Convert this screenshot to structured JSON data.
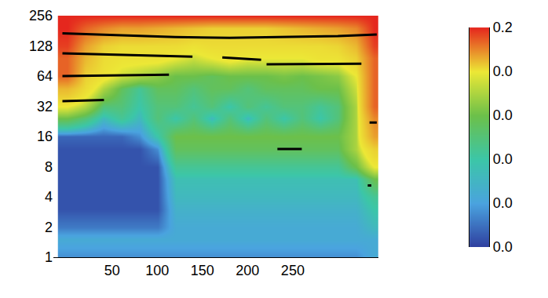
{
  "chart_data": {
    "type": "heatmap",
    "log": "y",
    "grid": false,
    "x": [
      0,
      20,
      40,
      60,
      80,
      100,
      120,
      140,
      160,
      180,
      200,
      220,
      240,
      260,
      280,
      300,
      320,
      340
    ],
    "y": [
      1,
      1.5,
      2,
      3,
      4,
      6,
      8,
      12,
      16,
      24,
      32,
      48,
      64,
      96,
      128,
      192,
      256
    ],
    "xlim": [
      -15,
      345
    ],
    "xticks": [
      50,
      100,
      150,
      200,
      250
    ],
    "ylim": [
      1,
      256
    ],
    "yticks": [
      1,
      2,
      4,
      8,
      16,
      32,
      64,
      128,
      256
    ],
    "z": [
      [
        0.004,
        0.004,
        0.004,
        0.004,
        0.004,
        0.004,
        0.004,
        0.004,
        0.004,
        0.004,
        0.004,
        0.004,
        0.004,
        0.004,
        0.004,
        0.004,
        0.004,
        0.006
      ],
      [
        0.006,
        0.006,
        0.006,
        0.006,
        0.006,
        0.006,
        0.006,
        0.006,
        0.006,
        0.006,
        0.006,
        0.006,
        0.006,
        0.006,
        0.006,
        0.006,
        0.006,
        0.006
      ],
      [
        0.003,
        0.003,
        0.003,
        0.003,
        0.003,
        0.003,
        0.006,
        0.006,
        0.006,
        0.006,
        0.006,
        0.006,
        0.006,
        0.006,
        0.006,
        0.006,
        0.006,
        0.008
      ],
      [
        0.001,
        0.001,
        0.001,
        0.001,
        0.001,
        0.001,
        0.007,
        0.007,
        0.007,
        0.007,
        0.007,
        0.007,
        0.007,
        0.007,
        0.007,
        0.007,
        0.007,
        0.01
      ],
      [
        0.001,
        0.001,
        0.001,
        0.001,
        0.001,
        0.001,
        0.008,
        0.008,
        0.008,
        0.008,
        0.008,
        0.008,
        0.008,
        0.008,
        0.008,
        0.008,
        0.008,
        0.012
      ],
      [
        0.001,
        0.001,
        0.001,
        0.001,
        0.001,
        0.001,
        0.009,
        0.009,
        0.009,
        0.009,
        0.009,
        0.009,
        0.009,
        0.009,
        0.009,
        0.009,
        0.009,
        0.02
      ],
      [
        0.001,
        0.001,
        0.001,
        0.001,
        0.001,
        0.001,
        0.012,
        0.012,
        0.012,
        0.012,
        0.012,
        0.012,
        0.012,
        0.012,
        0.012,
        0.012,
        0.02,
        0.04
      ],
      [
        0.001,
        0.001,
        0.001,
        0.001,
        0.001,
        0.004,
        0.018,
        0.018,
        0.018,
        0.018,
        0.018,
        0.018,
        0.018,
        0.018,
        0.018,
        0.018,
        0.03,
        0.06
      ],
      [
        0.002,
        0.002,
        0.002,
        0.002,
        0.004,
        0.01,
        0.02,
        0.02,
        0.02,
        0.02,
        0.02,
        0.02,
        0.02,
        0.02,
        0.02,
        0.02,
        0.03,
        0.1
      ],
      [
        0.02,
        0.015,
        0.008,
        0.012,
        0.008,
        0.015,
        0.01,
        0.015,
        0.008,
        0.015,
        0.008,
        0.015,
        0.01,
        0.015,
        0.01,
        0.015,
        0.03,
        0.12
      ],
      [
        0.04,
        0.03,
        0.015,
        0.015,
        0.01,
        0.015,
        0.015,
        0.012,
        0.015,
        0.01,
        0.015,
        0.012,
        0.015,
        0.015,
        0.012,
        0.015,
        0.03,
        0.15
      ],
      [
        0.08,
        0.05,
        0.03,
        0.018,
        0.012,
        0.018,
        0.018,
        0.015,
        0.018,
        0.018,
        0.015,
        0.018,
        0.018,
        0.018,
        0.02,
        0.02,
        0.035,
        0.15
      ],
      [
        0.15,
        0.06,
        0.045,
        0.035,
        0.03,
        0.025,
        0.02,
        0.02,
        0.018,
        0.02,
        0.02,
        0.02,
        0.022,
        0.02,
        0.022,
        0.025,
        0.04,
        0.15
      ],
      [
        0.15,
        0.08,
        0.05,
        0.045,
        0.045,
        0.045,
        0.04,
        0.035,
        0.04,
        0.045,
        0.04,
        0.04,
        0.04,
        0.04,
        0.045,
        0.045,
        0.06,
        0.15
      ],
      [
        0.18,
        0.1,
        0.06,
        0.05,
        0.05,
        0.05,
        0.05,
        0.045,
        0.05,
        0.05,
        0.05,
        0.05,
        0.05,
        0.05,
        0.05,
        0.055,
        0.08,
        0.18
      ],
      [
        0.2,
        0.15,
        0.12,
        0.1,
        0.1,
        0.09,
        0.08,
        0.07,
        0.06,
        0.06,
        0.06,
        0.06,
        0.07,
        0.08,
        0.09,
        0.1,
        0.12,
        0.2
      ],
      [
        0.2,
        0.2,
        0.2,
        0.2,
        0.2,
        0.2,
        0.2,
        0.2,
        0.2,
        0.2,
        0.2,
        0.2,
        0.2,
        0.2,
        0.2,
        0.2,
        0.2,
        0.2
      ]
    ],
    "colorbar": {
      "range": [
        0,
        0.2
      ],
      "ticks": [
        {
          "value": 0,
          "label": "0.0"
        },
        {
          "value": 0.005,
          "label": "0.0"
        },
        {
          "value": 0.01,
          "label": "0.0"
        },
        {
          "value": 0.02,
          "label": "0.0"
        },
        {
          "value": 0.04,
          "label": "0.0"
        },
        0.2
      ]
    },
    "ridges": [
      {
        "x": [
          -5,
          60,
          120,
          180,
          240,
          300,
          343
        ],
        "y": [
          171,
          163,
          157,
          154,
          156,
          160,
          166
        ]
      },
      {
        "x": [
          -5,
          60,
          139
        ],
        "y": [
          108,
          104,
          100
        ]
      },
      {
        "x": [
          -5,
          113
        ],
        "y": [
          64,
          66
        ]
      },
      {
        "x": [
          -5,
          41
        ],
        "y": [
          36,
          37
        ]
      },
      {
        "x": [
          172,
          215
        ],
        "y": [
          98,
          93
        ]
      },
      {
        "x": [
          221,
          326
        ],
        "y": [
          84,
          85
        ]
      },
      {
        "x": [
          233,
          260
        ],
        "y": [
          12,
          12
        ]
      },
      {
        "x": [
          335,
          343
        ],
        "y": [
          22,
          22
        ]
      },
      {
        "x": [
          333,
          337
        ],
        "y": [
          5.2,
          5.2
        ]
      }
    ]
  }
}
